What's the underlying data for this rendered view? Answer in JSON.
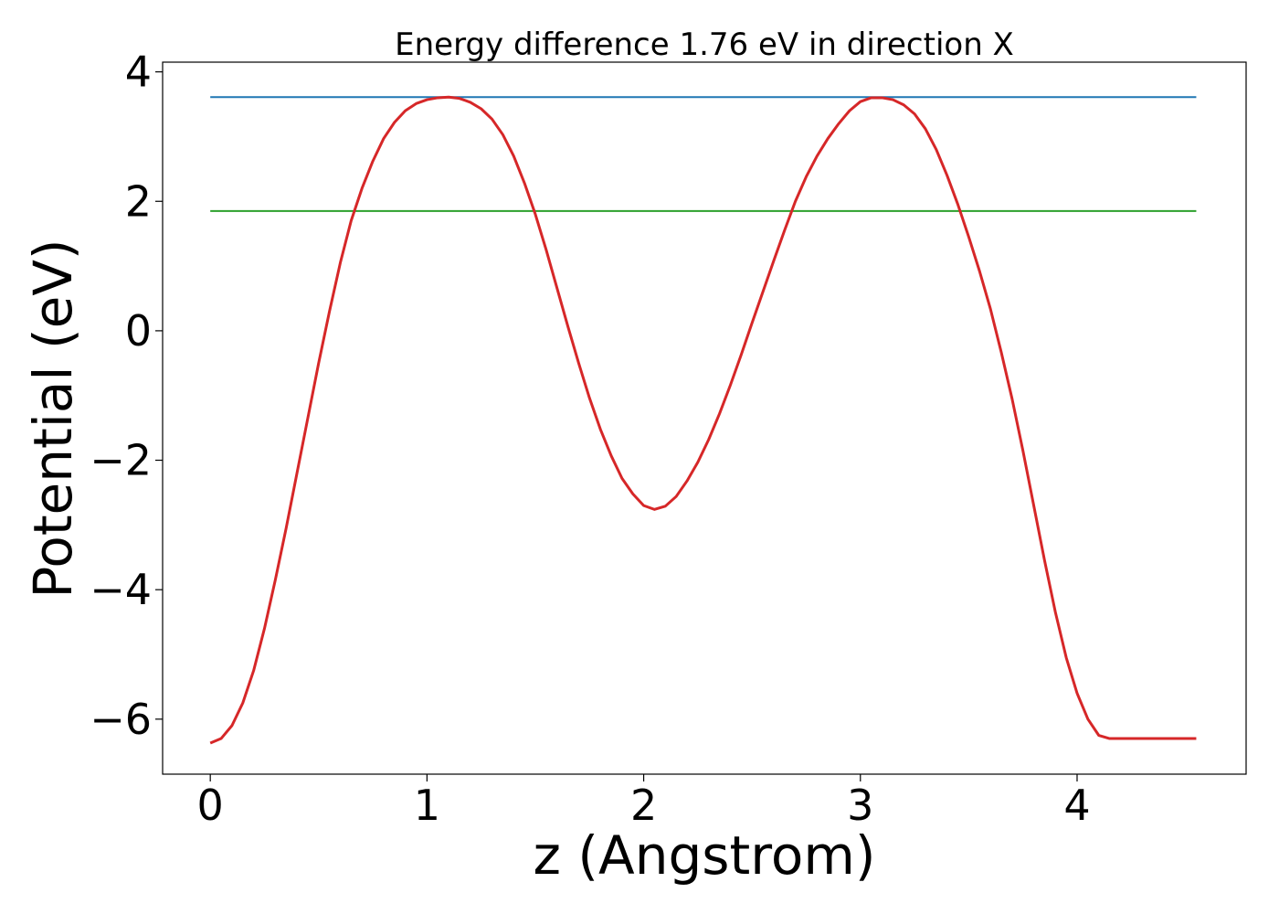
{
  "chart_data": {
    "type": "line",
    "title": "Energy difference 1.76 eV in direction X",
    "xlabel": "z (Angstrom)",
    "ylabel": "Potential (eV)",
    "xlim": [
      -0.22,
      4.78
    ],
    "ylim": [
      -6.85,
      4.15
    ],
    "xticks": [
      0,
      1,
      2,
      3,
      4
    ],
    "xtick_labels": [
      "0",
      "1",
      "2",
      "3",
      "4"
    ],
    "yticks": [
      -6,
      -4,
      -2,
      0,
      2,
      4
    ],
    "ytick_labels": [
      "−6",
      "−4",
      "−2",
      "0",
      "2",
      "4"
    ],
    "grid": false,
    "series": [
      {
        "color": "#1f77b4",
        "x": [
          0,
          4.55
        ],
        "y": [
          3.61,
          3.61
        ]
      },
      {
        "color": "#2ca02c",
        "x": [
          0,
          4.55
        ],
        "y": [
          1.85,
          1.85
        ]
      },
      {
        "color": "#d62728",
        "x": [
          0,
          0.05,
          0.1,
          0.15,
          0.2,
          0.25,
          0.3,
          0.35,
          0.4,
          0.45,
          0.5,
          0.55,
          0.6,
          0.65,
          0.7,
          0.75,
          0.8,
          0.85,
          0.9,
          0.95,
          1.0,
          1.05,
          1.1,
          1.15,
          1.2,
          1.25,
          1.3,
          1.35,
          1.4,
          1.45,
          1.5,
          1.55,
          1.6,
          1.65,
          1.7,
          1.75,
          1.8,
          1.85,
          1.9,
          1.95,
          2.0,
          2.05,
          2.1,
          2.15,
          2.2,
          2.25,
          2.3,
          2.35,
          2.4,
          2.45,
          2.5,
          2.55,
          2.6,
          2.65,
          2.7,
          2.75,
          2.8,
          2.85,
          2.9,
          2.95,
          3.0,
          3.05,
          3.1,
          3.15,
          3.2,
          3.25,
          3.3,
          3.35,
          3.4,
          3.45,
          3.5,
          3.55,
          3.6,
          3.65,
          3.7,
          3.75,
          3.8,
          3.85,
          3.9,
          3.95,
          4.0,
          4.05,
          4.1,
          4.15,
          4.2,
          4.25,
          4.3,
          4.35,
          4.4,
          4.45,
          4.5,
          4.55
        ],
        "y": [
          -6.37,
          -6.3,
          -6.1,
          -5.75,
          -5.25,
          -4.6,
          -3.85,
          -3.05,
          -2.2,
          -1.35,
          -0.5,
          0.3,
          1.05,
          1.7,
          2.2,
          2.62,
          2.97,
          3.22,
          3.4,
          3.51,
          3.57,
          3.6,
          3.61,
          3.59,
          3.53,
          3.43,
          3.27,
          3.03,
          2.7,
          2.28,
          1.8,
          1.25,
          0.66,
          0.07,
          -0.5,
          -1.04,
          -1.52,
          -1.93,
          -2.28,
          -2.52,
          -2.7,
          -2.76,
          -2.71,
          -2.56,
          -2.32,
          -2.03,
          -1.68,
          -1.28,
          -0.84,
          -0.37,
          0.12,
          0.6,
          1.08,
          1.55,
          2.0,
          2.38,
          2.7,
          2.97,
          3.2,
          3.4,
          3.54,
          3.6,
          3.6,
          3.57,
          3.49,
          3.35,
          3.12,
          2.8,
          2.4,
          1.95,
          1.45,
          0.92,
          0.34,
          -0.33,
          -1.05,
          -1.85,
          -2.7,
          -3.55,
          -4.35,
          -5.05,
          -5.6,
          -6.0,
          -6.25,
          -6.3,
          -6.3,
          -6.3,
          -6.3,
          -6.3,
          -6.3,
          -6.3,
          -6.3,
          -6.3
        ]
      }
    ]
  }
}
